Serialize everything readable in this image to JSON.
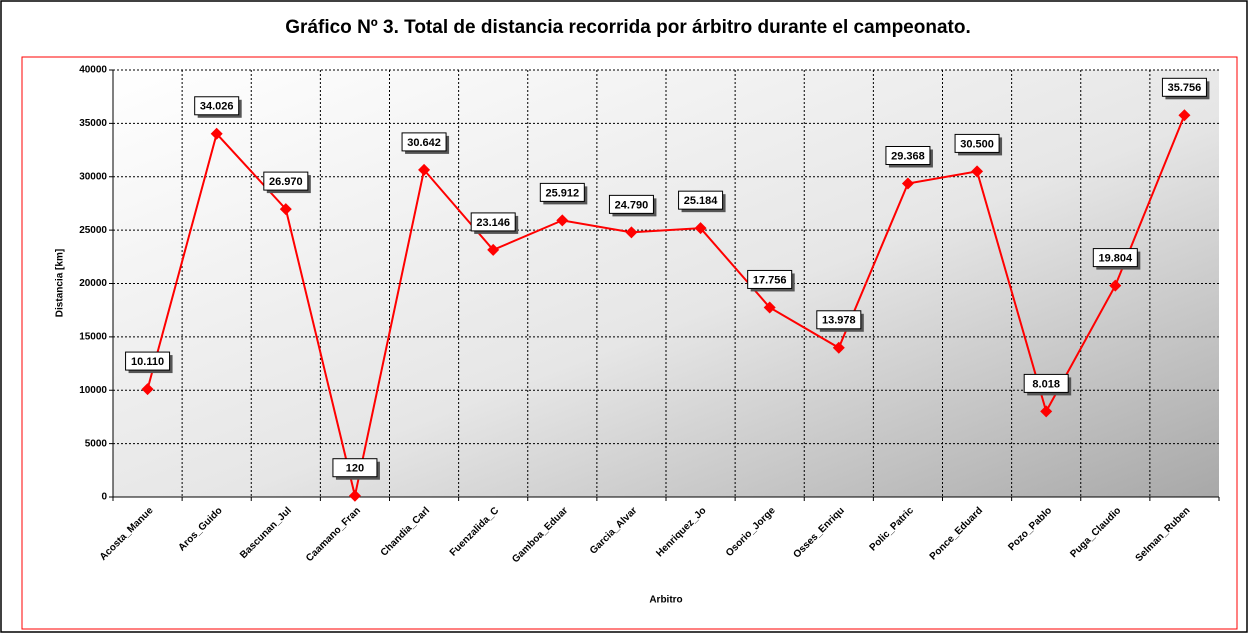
{
  "chart_data": {
    "type": "line",
    "title": "Gráfico Nº 3. Total de distancia recorrida por árbitro durante el campeonato.",
    "x_label": "Arbitro",
    "y_label": "Distancia [km]",
    "categories": [
      "Acosta_Manue",
      "Aros_Guido",
      "Bascunan_Jul",
      "Caamano_Fran",
      "Chandia_Carl",
      "Fuenzalida_C",
      "Gamboa_Eduar",
      "Garcia_Alvar",
      "Henriquez_Jo",
      "Osorio_Jorge",
      "Osses_Enriqu",
      "Polic_Patric",
      "Ponce_Eduard",
      "Pozo_Pablo",
      "Puga_Claudio",
      "Selman_Ruben"
    ],
    "values": [
      10110,
      34026,
      26970,
      120,
      30642,
      23146,
      25912,
      24790,
      25184,
      17756,
      13978,
      29368,
      30500,
      8018,
      19804,
      35756
    ],
    "value_labels": [
      "10.110",
      "34.026",
      "26.970",
      "120",
      "30.642",
      "23.146",
      "25.912",
      "24.790",
      "25.184",
      "17.756",
      "13.978",
      "29.368",
      "30.500",
      "8.018",
      "19.804",
      "35.756"
    ],
    "color": "#ff0000",
    "ylim": [
      0,
      40000
    ],
    "yticks": [
      0,
      5000,
      10000,
      15000,
      20000,
      25000,
      30000,
      35000,
      40000
    ],
    "grid": true
  }
}
